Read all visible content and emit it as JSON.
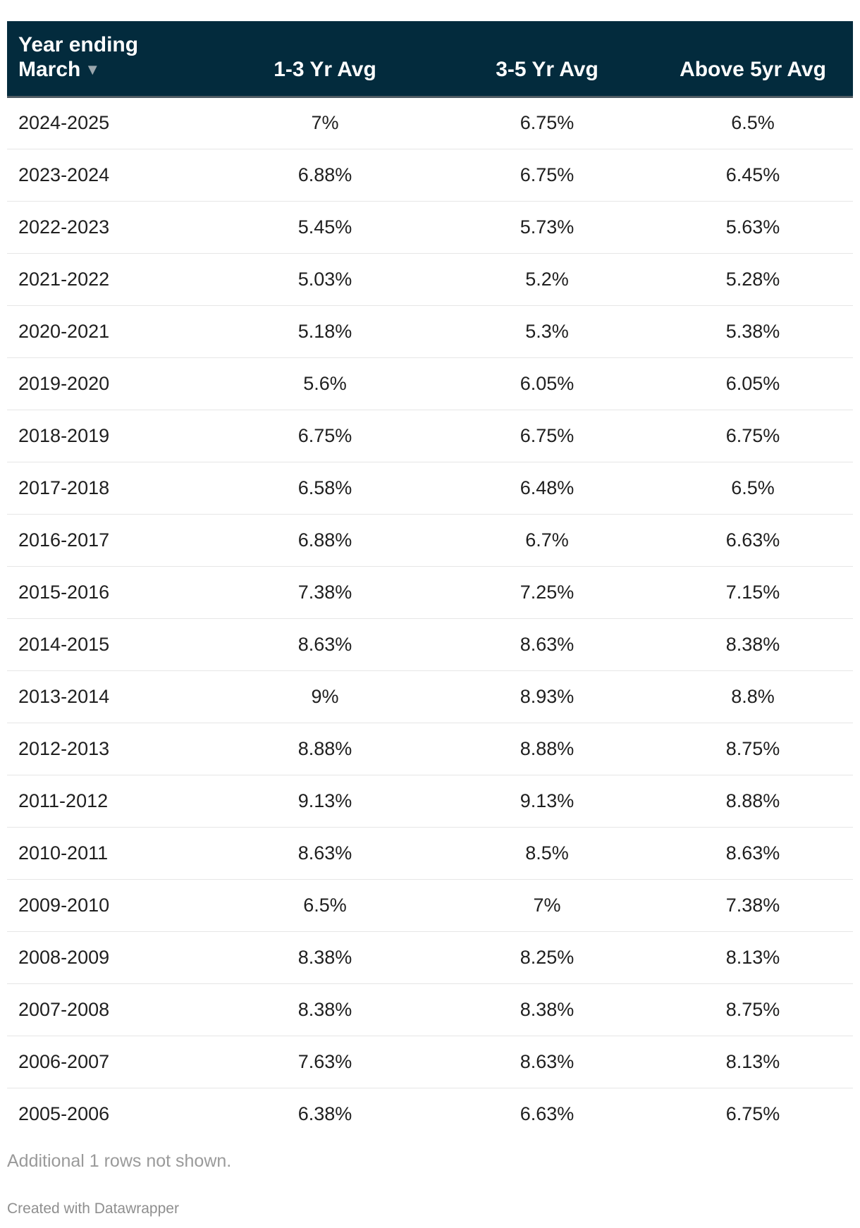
{
  "chart_data": {
    "type": "table",
    "columns": [
      "Year ending March",
      "1-3 Yr Avg",
      "3-5 Yr Avg",
      "Above 5yr Avg"
    ],
    "sort": {
      "column": "Year ending March",
      "direction": "descending"
    },
    "rows": [
      [
        "2024-2025",
        "7%",
        "6.75%",
        "6.5%"
      ],
      [
        "2023-2024",
        "6.88%",
        "6.75%",
        "6.45%"
      ],
      [
        "2022-2023",
        "5.45%",
        "5.73%",
        "5.63%"
      ],
      [
        "2021-2022",
        "5.03%",
        "5.2%",
        "5.28%"
      ],
      [
        "2020-2021",
        "5.18%",
        "5.3%",
        "5.38%"
      ],
      [
        "2019-2020",
        "5.6%",
        "6.05%",
        "6.05%"
      ],
      [
        "2018-2019",
        "6.75%",
        "6.75%",
        "6.75%"
      ],
      [
        "2017-2018",
        "6.58%",
        "6.48%",
        "6.5%"
      ],
      [
        "2016-2017",
        "6.88%",
        "6.7%",
        "6.63%"
      ],
      [
        "2015-2016",
        "7.38%",
        "7.25%",
        "7.15%"
      ],
      [
        "2014-2015",
        "8.63%",
        "8.63%",
        "8.38%"
      ],
      [
        "2013-2014",
        "9%",
        "8.93%",
        "8.8%"
      ],
      [
        "2012-2013",
        "8.88%",
        "8.88%",
        "8.75%"
      ],
      [
        "2011-2012",
        "9.13%",
        "9.13%",
        "8.88%"
      ],
      [
        "2010-2011",
        "8.63%",
        "8.5%",
        "8.63%"
      ],
      [
        "2009-2010",
        "6.5%",
        "7%",
        "7.38%"
      ],
      [
        "2008-2009",
        "8.38%",
        "8.25%",
        "8.13%"
      ],
      [
        "2007-2008",
        "8.38%",
        "8.38%",
        "8.75%"
      ],
      [
        "2006-2007",
        "7.63%",
        "8.63%",
        "8.13%"
      ],
      [
        "2005-2006",
        "6.38%",
        "6.63%",
        "6.75%"
      ]
    ],
    "header_color": "#032b3d"
  },
  "header": {
    "year_line1": "Year ending",
    "year_line2": "March",
    "col2": "1-3 Yr Avg",
    "col3": "3-5 Yr Avg",
    "col4": "Above 5yr Avg",
    "sort_icon": "sort-descending-icon"
  },
  "footer": {
    "notes": "Additional 1 rows not shown.",
    "credit": "Created with Datawrapper"
  }
}
